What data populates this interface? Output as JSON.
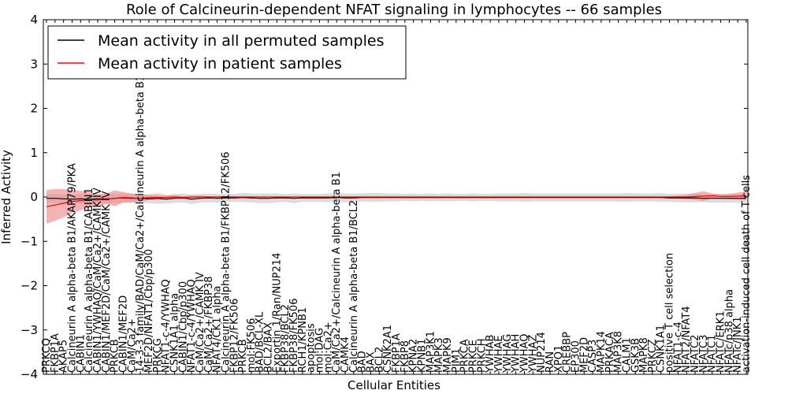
{
  "chart_data": {
    "type": "line",
    "title": "Role of Calcineurin-dependent NFAT signaling in lymphocytes -- 66 samples",
    "xlabel": "Cellular Entities",
    "ylabel": "Inferred Activity",
    "ylim": [
      -4,
      4
    ],
    "yticks": [
      -4,
      -3,
      -2,
      -1,
      0,
      1,
      2,
      3,
      4
    ],
    "grid": false,
    "legend_position": "top-left",
    "categories": [
      "PRKCQ",
      "FKBP1A",
      "AKAP5",
      "Calcineurin A alpha-beta B1/AKAP79/PKA",
      "CABIN1",
      "Calcineurin A alpha-beta B1/CABIN1",
      "CABIN1/YWHAQ/CaM/Ca2+/CAMK IV",
      "CABIN1/MEF2D/CaM/Ca2+/CAMK IV",
      "PRKCB",
      "CABIN1/MEF2D",
      "CaM/Ca2+",
      "14-3-3 family/BAD/CaM/Ca2+/Calcineurin A alpha-beta B1",
      "MEF2D/NFAT1/Cbp/p300",
      "PRKCG",
      "NFAT1-c-4/YWHAQ",
      "CSNK1A1 alpha",
      "CABIN1/Cbp/p300",
      "NFAT1-c-4/YWHAQ",
      "CaM/Ca2+/CAMK IV",
      "CaM/Ca2+/FKBP38",
      "NFAT4/CK1 alpha",
      "Calcineurin A alpha-beta B1/FKBP12/FK506",
      "FKBP12/FK506",
      "PRKCB",
      "mol:FK506",
      "BAD/BCL-XL",
      "BCL2/BAX",
      "Exportin 1/Ran/NUP214",
      "FKBP38/BCL2",
      "FKBP38/FK506",
      "RCH1/KPNB1",
      "apoptosis",
      "mol:DAG",
      "mol:Ca2+",
      "CaM/Ca2+/Calcineurin A alpha-beta B1",
      "CAMK4",
      "Calcineurin A alpha-beta B1/BCL2",
      "BAD",
      "BAX",
      "BCL2",
      "CSNK2A1",
      "FKBP1A",
      "FKBP8",
      "KPNA2",
      "KPNB1",
      "MAP3K1",
      "MAPK3",
      "MAPK9",
      "PIM1",
      "PRKCA",
      "PRKCE",
      "PRKCH",
      "YWHAB",
      "YWHAE",
      "YWHAG",
      "YWHAH",
      "YWHAQ",
      "YWHAZ",
      "NUP214",
      "RAN",
      "XPO1",
      "CREBBP",
      "EP300",
      "MEF2D",
      "CASP3",
      "MAPK14",
      "PRKACA",
      "MAP3K8",
      "CALM1",
      "GSK3B",
      "MAPK8",
      "PRKCZ",
      "CSNK1A1",
      "positive T cell selection",
      "NFAT1-c-4",
      "NFAT2/NFAT4",
      "NFATC2",
      "NFATC3",
      "NFATC1",
      "NFATC/ERK1",
      "NFATc/p38 alpha",
      "NFATc/JNK1",
      "activation-induced cell death of T cells"
    ],
    "series": [
      {
        "name": "Mean activity in all permuted samples",
        "color": "#000000",
        "band_color": "#c0c0c0",
        "values": [
          -0.03,
          -0.03,
          -0.04,
          -0.05,
          -0.04,
          -0.05,
          -0.04,
          -0.04,
          -0.03,
          -0.02,
          -0.03,
          -0.03,
          -0.04,
          -0.03,
          -0.05,
          -0.03,
          -0.02,
          -0.05,
          -0.03,
          -0.02,
          -0.03,
          -0.02,
          -0.02,
          -0.01,
          -0.02,
          -0.03,
          -0.03,
          -0.02,
          -0.02,
          -0.03,
          -0.02,
          -0.02,
          -0.02,
          -0.02,
          -0.01,
          -0.02,
          -0.02,
          -0.01,
          -0.01,
          -0.01,
          -0.01,
          -0.01,
          -0.01,
          -0.01,
          -0.01,
          -0.01,
          -0.01,
          -0.01,
          -0.01,
          -0.01,
          -0.01,
          -0.01,
          -0.01,
          -0.01,
          -0.01,
          -0.01,
          -0.01,
          -0.01,
          -0.01,
          -0.01,
          -0.01,
          -0.01,
          -0.01,
          -0.01,
          -0.01,
          -0.01,
          -0.01,
          -0.01,
          -0.01,
          -0.01,
          -0.01,
          -0.01,
          -0.01,
          -0.02,
          -0.02,
          -0.02,
          -0.02,
          -0.03,
          -0.03,
          -0.03,
          -0.03,
          -0.03,
          -0.03
        ],
        "band": [
          0.1,
          0.1,
          0.1,
          0.1,
          0.11,
          0.12,
          0.1,
          0.1,
          0.11,
          0.1,
          0.1,
          0.11,
          0.1,
          0.12,
          0.1,
          0.1,
          0.1,
          0.11,
          0.1,
          0.1,
          0.1,
          0.09,
          0.09,
          0.1,
          0.1,
          0.11,
          0.11,
          0.1,
          0.09,
          0.11,
          0.09,
          0.09,
          0.09,
          0.1,
          0.1,
          0.1,
          0.1,
          0.09,
          0.1,
          0.1,
          0.09,
          0.09,
          0.08,
          0.09,
          0.08,
          0.09,
          0.08,
          0.09,
          0.08,
          0.08,
          0.09,
          0.08,
          0.08,
          0.09,
          0.09,
          0.09,
          0.1,
          0.09,
          0.09,
          0.09,
          0.09,
          0.09,
          0.09,
          0.09,
          0.09,
          0.09,
          0.09,
          0.09,
          0.1,
          0.09,
          0.09,
          0.09,
          0.1,
          0.09,
          0.1,
          0.1,
          0.1,
          0.09,
          0.1,
          0.1,
          0.1,
          0.1,
          0.1
        ]
      },
      {
        "name": "Mean activity in patient samples",
        "color": "#ff0000",
        "band_color": "#f08080",
        "values": [
          -0.22,
          -0.18,
          -0.14,
          -0.1,
          -0.08,
          -0.06,
          -0.07,
          -0.04,
          -0.03,
          -0.01,
          -0.02,
          -0.03,
          -0.01,
          -0.01,
          -0.01,
          0.0,
          -0.01,
          0.0,
          0.0,
          0.0,
          0.0,
          0.0,
          0.0,
          0.0,
          0.0,
          0.0,
          0.0,
          0.0,
          0.0,
          0.0,
          0.0,
          0.0,
          0.0,
          0.0,
          0.0,
          0.0,
          0.0,
          0.0,
          0.0,
          0.0,
          0.0,
          0.0,
          0.0,
          0.0,
          0.0,
          0.0,
          0.0,
          0.0,
          0.0,
          0.0,
          0.0,
          0.0,
          0.0,
          0.0,
          0.0,
          0.0,
          0.0,
          0.0,
          0.0,
          0.0,
          0.0,
          0.0,
          0.0,
          0.0,
          0.0,
          0.0,
          0.0,
          0.0,
          0.0,
          0.0,
          0.0,
          0.0,
          0.0,
          0.0,
          0.0,
          0.0,
          0.01,
          0.02,
          0.03,
          0.01,
          0.01,
          0.02,
          0.03
        ],
        "band": [
          0.38,
          0.36,
          0.32,
          0.26,
          0.22,
          0.18,
          0.14,
          0.12,
          0.18,
          0.12,
          0.1,
          0.08,
          0.06,
          0.05,
          0.04,
          0.04,
          0.03,
          0.03,
          0.03,
          0.02,
          0.02,
          0.02,
          0.02,
          0.01,
          0.01,
          0.01,
          0.01,
          0.01,
          0.01,
          0.01,
          0.01,
          0.01,
          0.01,
          0.01,
          0.01,
          0.01,
          0.01,
          0.01,
          0.01,
          0.01,
          0.01,
          0.01,
          0.01,
          0.01,
          0.01,
          0.01,
          0.01,
          0.01,
          0.01,
          0.01,
          0.01,
          0.01,
          0.01,
          0.01,
          0.01,
          0.01,
          0.01,
          0.01,
          0.01,
          0.01,
          0.01,
          0.01,
          0.01,
          0.01,
          0.01,
          0.01,
          0.01,
          0.01,
          0.01,
          0.01,
          0.01,
          0.01,
          0.01,
          0.02,
          0.03,
          0.05,
          0.08,
          0.11,
          0.05,
          0.05,
          0.06,
          0.08,
          0.1
        ]
      }
    ]
  }
}
